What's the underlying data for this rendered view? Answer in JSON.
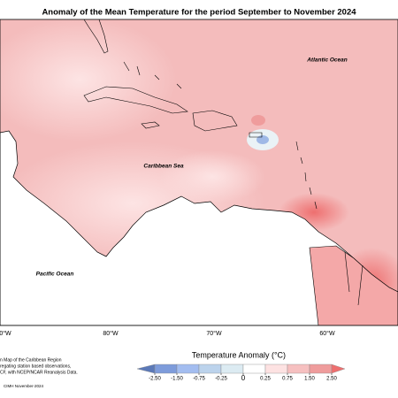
{
  "title": "Anomaly of the Mean Temperature for the period September to November 2024",
  "map": {
    "labels": [
      "Atlantic Ocean",
      "Caribbean Sea",
      "Pacific Ocean"
    ],
    "lon_labels": [
      "0°W",
      "80°W",
      "70°W",
      "60°W"
    ]
  },
  "colorbar": {
    "title": "Temperature Anomaly (°C)",
    "ticks": [
      {
        "value": -2.5,
        "label": "-2.50"
      },
      {
        "value": -1.5,
        "label": "-1.50"
      },
      {
        "value": -0.75,
        "label": "-0.75"
      },
      {
        "value": -0.25,
        "label": "-0.25"
      },
      0,
      {
        "value": 0.25,
        "label": "0.25"
      },
      {
        "value": 0.75,
        "label": "0.75"
      },
      {
        "value": 1.5,
        "label": "1.50"
      },
      {
        "value": 2.5,
        "label": "2.50"
      }
    ],
    "colors": [
      "#5b79b8",
      "#7e9cdb",
      "#a3bdf0",
      "#bcd3ec",
      "#dcebf2",
      "#ffffff",
      "#fde2e2",
      "#f6c0c0",
      "#ef9c9c",
      "#ee6f6f"
    ]
  },
  "footnotes": [
    "n Map of the Caribbean Region",
    "regating station based observations,",
    "CF, with NCEP/NCAR Reanalysis Data.",
    "CIMH November-2024"
  ]
}
